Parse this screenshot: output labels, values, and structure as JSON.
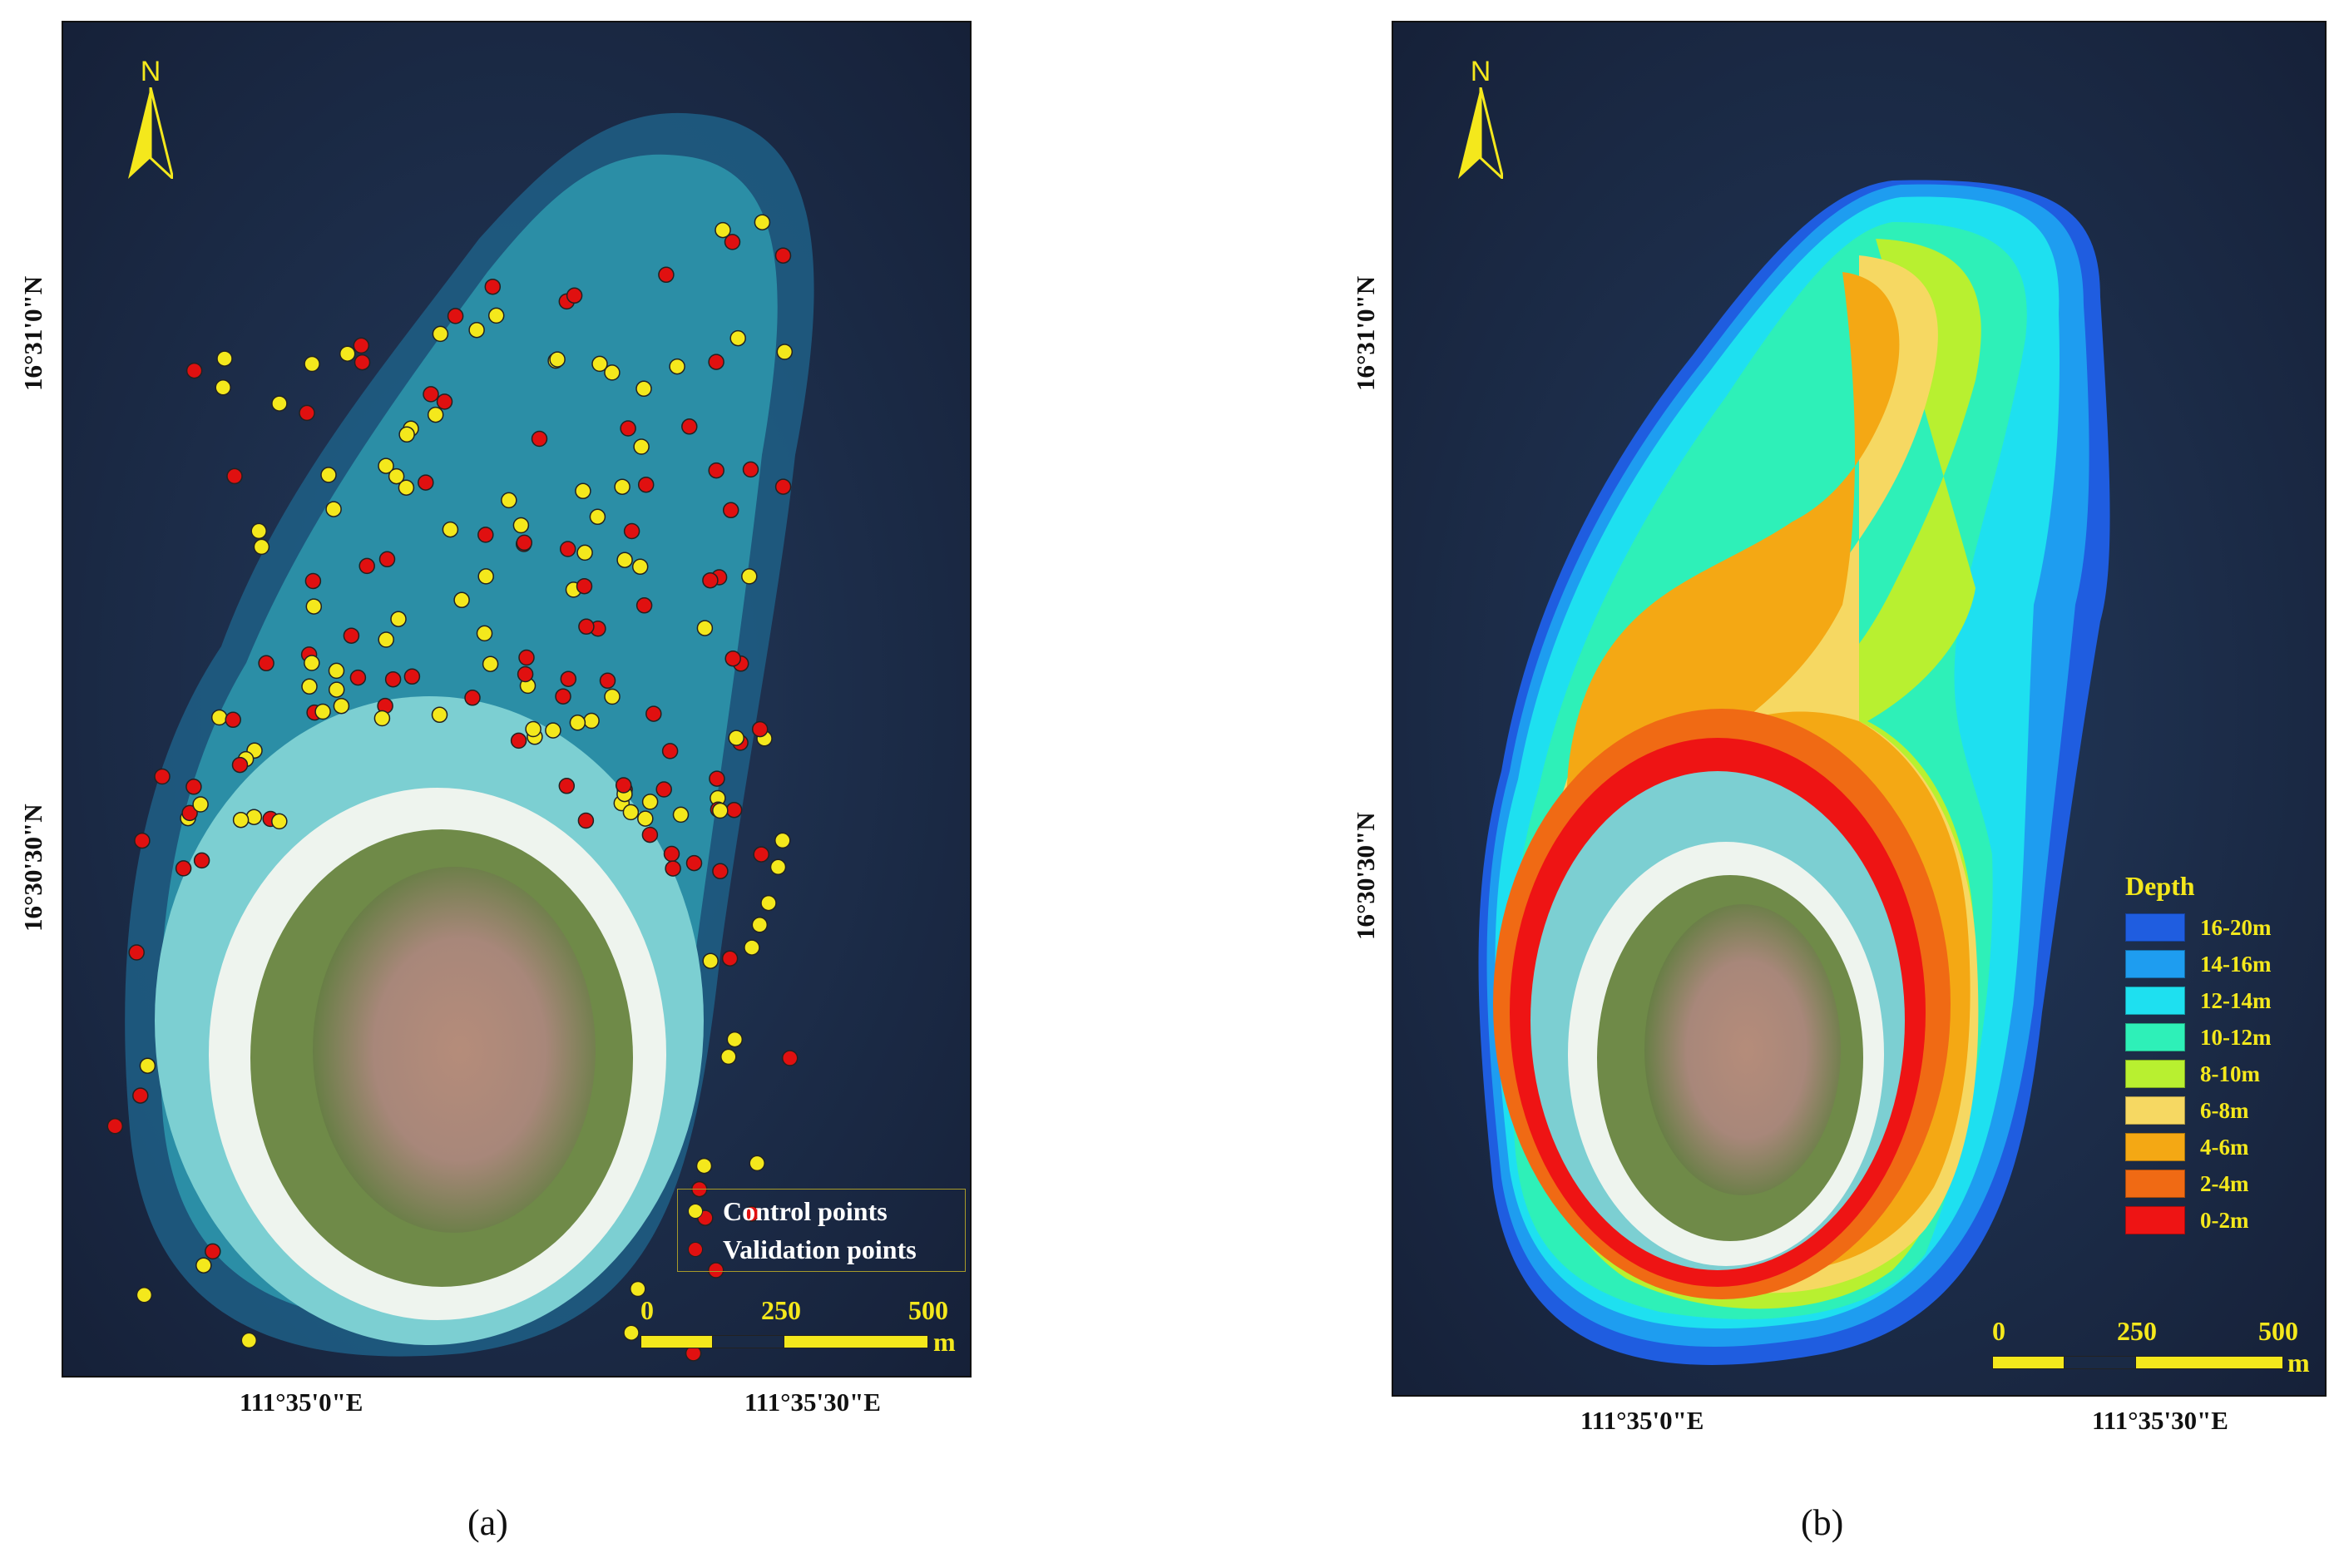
{
  "north_label": "N",
  "panel_a": {
    "lat_labels": [
      "16°31'0\"N",
      "16°30'30\"N"
    ],
    "lon_labels": [
      "111°35'0\"E",
      "111°35'30\"E"
    ],
    "legend": [
      {
        "label": "Control points",
        "color": "#f4e81c"
      },
      {
        "label": "Validation points",
        "color": "#e01010"
      }
    ],
    "scale": {
      "ticks": [
        "0",
        "250",
        "500"
      ],
      "unit": "m"
    },
    "caption": "(a)"
  },
  "panel_b": {
    "lat_labels": [
      "16°31'0\"N",
      "16°30'30\"N"
    ],
    "lon_labels": [
      "111°35'0\"E",
      "111°35'30\"E"
    ],
    "legend_title": "Depth",
    "depth_classes": [
      {
        "label": "16-20m",
        "color": "#1f5de0"
      },
      {
        "label": "14-16m",
        "color": "#1e9df0"
      },
      {
        "label": "12-14m",
        "color": "#1ee0f0"
      },
      {
        "label": "10-12m",
        "color": "#2ef0b8"
      },
      {
        "label": "8-10m",
        "color": "#b8f030"
      },
      {
        "label": "6-8m",
        "color": "#f6d862"
      },
      {
        "label": "4-6m",
        "color": "#f4a814"
      },
      {
        "label": "2-4m",
        "color": "#f06a14"
      },
      {
        "label": "0-2m",
        "color": "#ee1414"
      }
    ],
    "scale": {
      "ticks": [
        "0",
        "250",
        "500"
      ],
      "unit": "m"
    },
    "caption": "(b)"
  },
  "colors": {
    "ocean": "#1a2a45",
    "lagoon": "#2b8ea6",
    "sand": "#eef4ee",
    "vegetation": "#6f8a48",
    "highlight": "#f4e81c"
  }
}
